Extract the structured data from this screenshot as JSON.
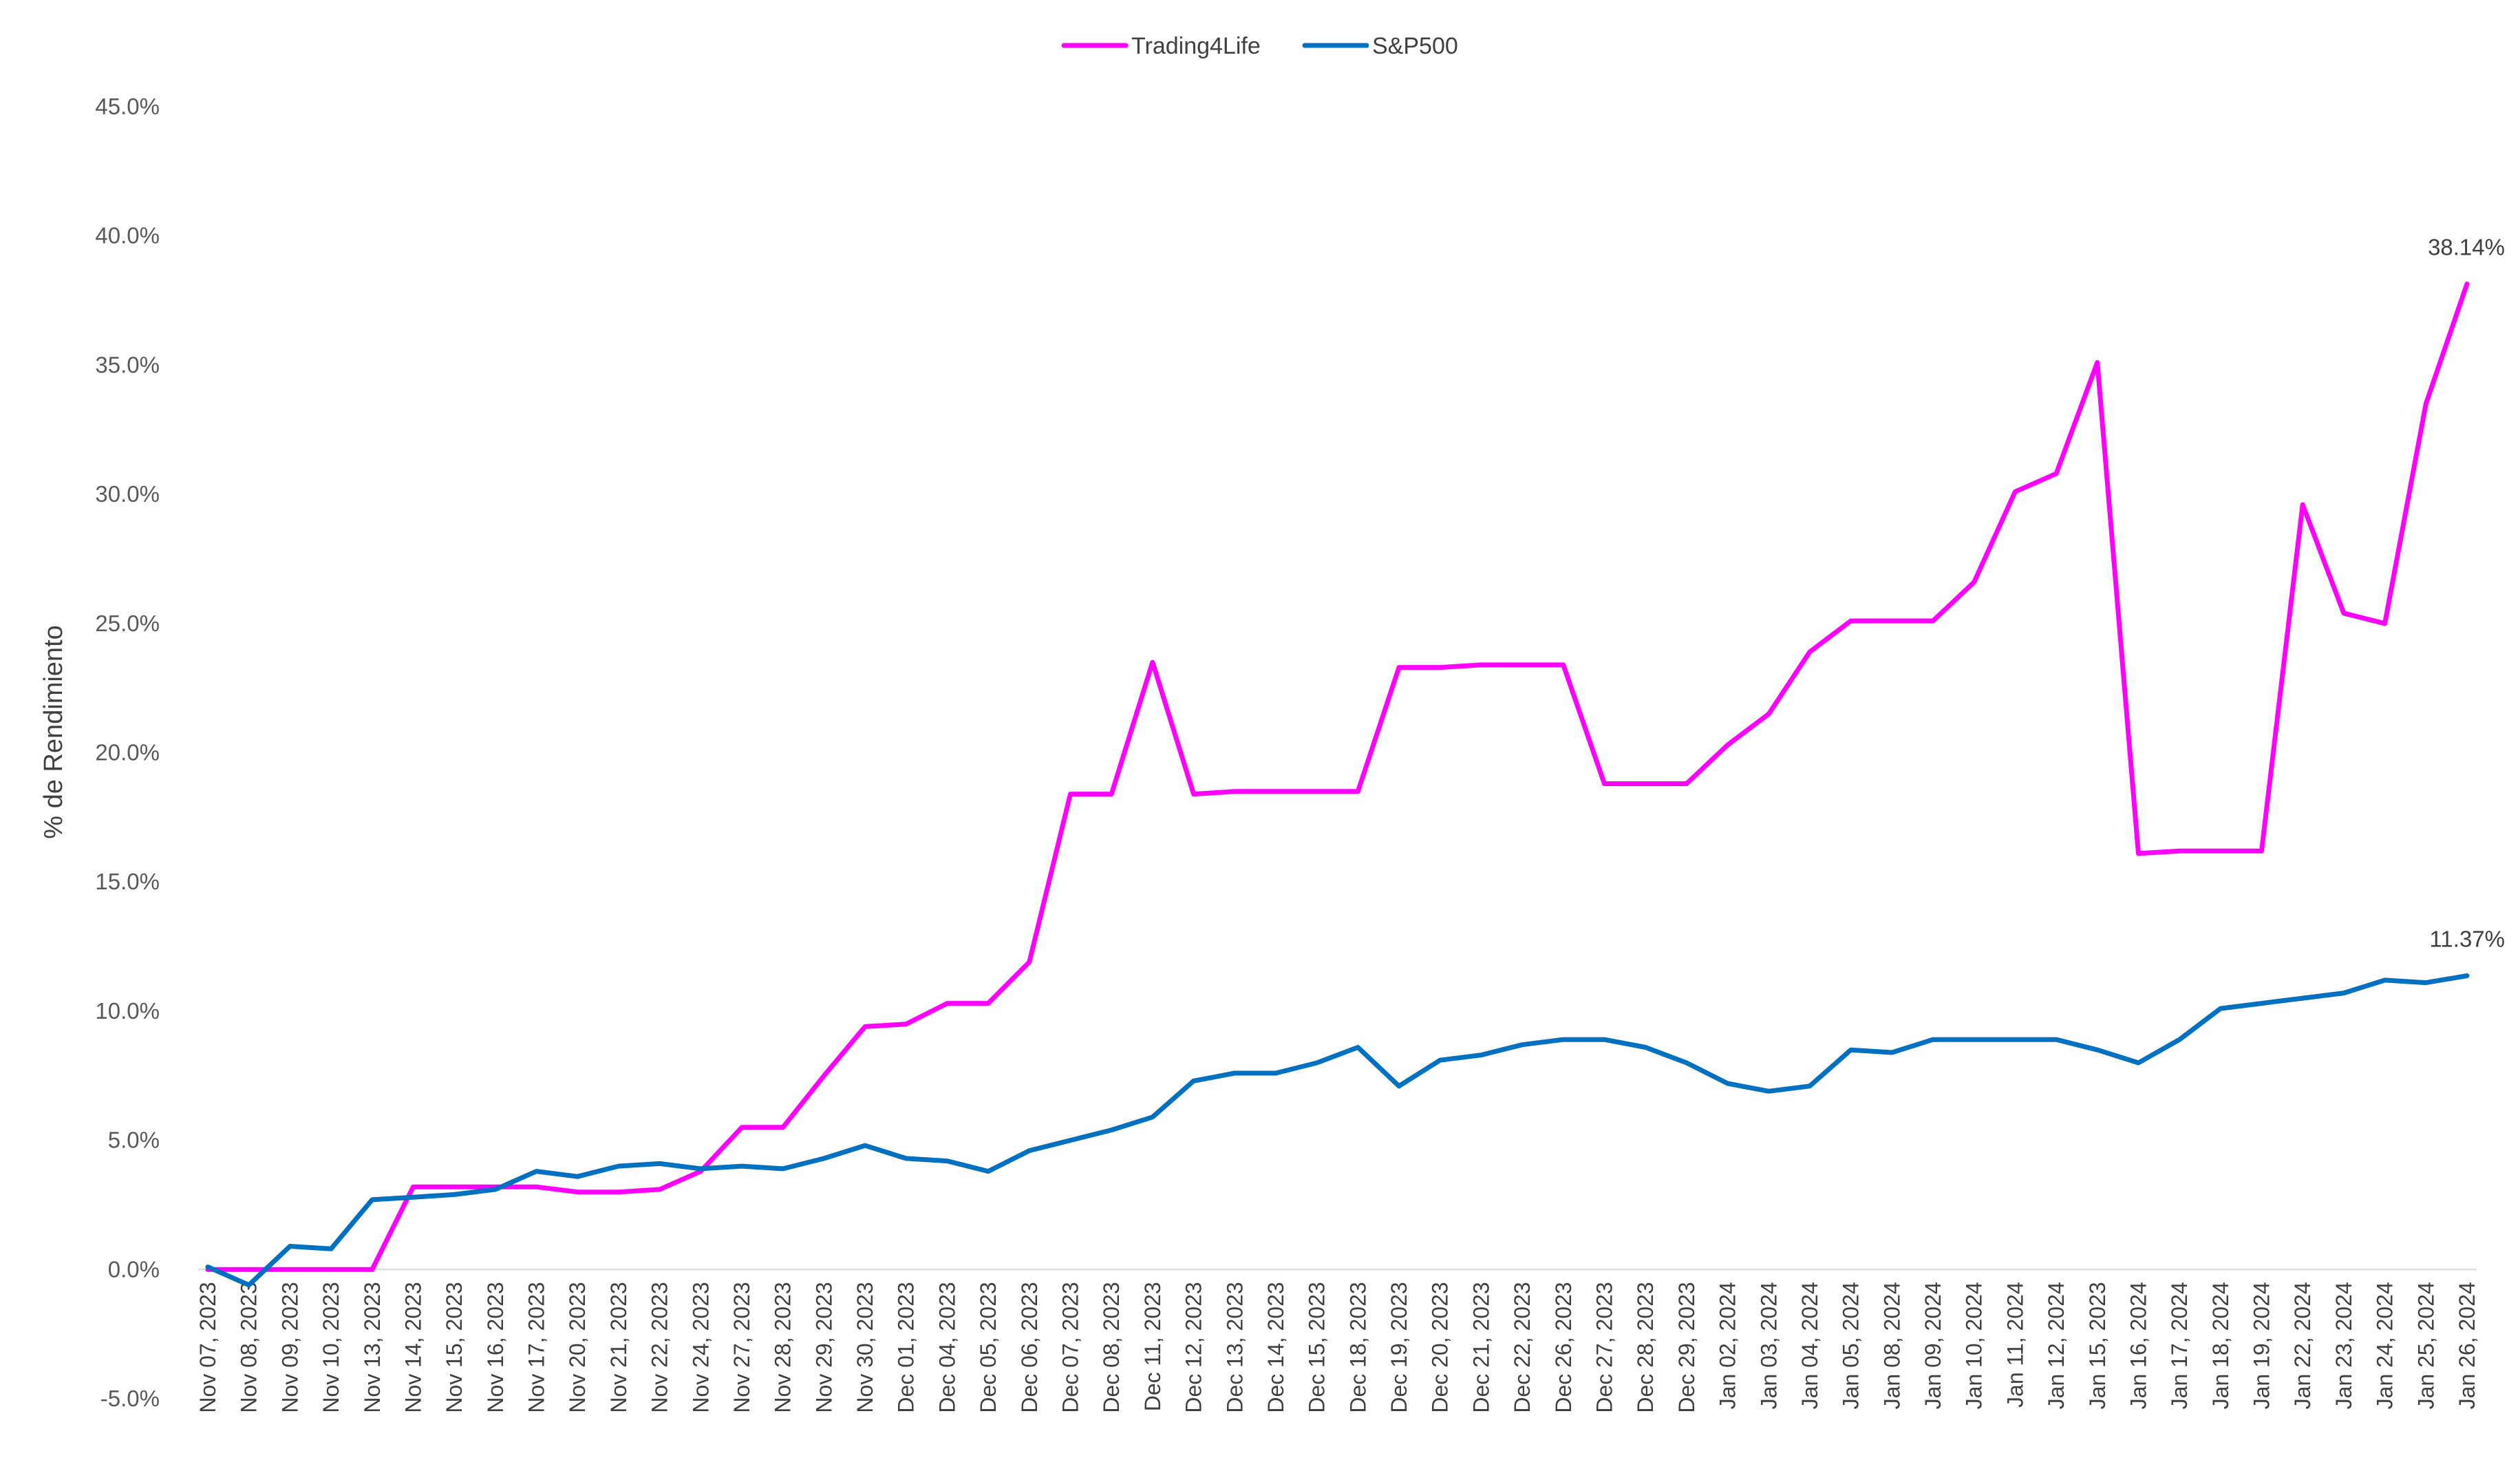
{
  "chart_data": {
    "type": "line",
    "ylabel": "% de Rendimiento",
    "ylim": [
      -5,
      45
    ],
    "yticks": [
      -5,
      0,
      5,
      10,
      15,
      20,
      25,
      30,
      35,
      40,
      45
    ],
    "ytick_labels": [
      "-5.0%",
      "0.0%",
      "5.0%",
      "10.0%",
      "15.0%",
      "20.0%",
      "25.0%",
      "30.0%",
      "35.0%",
      "40.0%",
      "45.0%"
    ],
    "grid": false,
    "legend_position": "top-center",
    "categories": [
      "Nov 07, 2023",
      "Nov 08, 2023",
      "Nov 09, 2023",
      "Nov 10, 2023",
      "Nov 13, 2023",
      "Nov 14, 2023",
      "Nov 15, 2023",
      "Nov 16, 2023",
      "Nov 17, 2023",
      "Nov 20, 2023",
      "Nov 21, 2023",
      "Nov 22, 2023",
      "Nov 24, 2023",
      "Nov 27, 2023",
      "Nov 28, 2023",
      "Nov 29, 2023",
      "Nov 30, 2023",
      "Dec 01, 2023",
      "Dec 04, 2023",
      "Dec 05, 2023",
      "Dec 06, 2023",
      "Dec 07, 2023",
      "Dec 08, 2023",
      "Dec 11, 2023",
      "Dec 12, 2023",
      "Dec 13, 2023",
      "Dec 14, 2023",
      "Dec 15, 2023",
      "Dec 18, 2023",
      "Dec 19, 2023",
      "Dec 20, 2023",
      "Dec 21, 2023",
      "Dec 22, 2023",
      "Dec 26, 2023",
      "Dec 27, 2023",
      "Dec 28, 2023",
      "Dec 29, 2023",
      "Jan 02, 2024",
      "Jan 03, 2024",
      "Jan 04, 2024",
      "Jan 05, 2024",
      "Jan 08, 2024",
      "Jan 09, 2024",
      "Jan 10, 2024",
      "Jan 11, 2024",
      "Jan 12, 2024",
      "Jan 15, 2023",
      "Jan 16, 2024",
      "Jan 17, 2024",
      "Jan 18, 2024",
      "Jan 19, 2024",
      "Jan 22, 2024",
      "Jan 23, 2024",
      "Jan 24, 2024",
      "Jan 25, 2024",
      "Jan 26, 2024"
    ],
    "series": [
      {
        "name": "Trading4Life",
        "color": "#FF00FF",
        "values": [
          0.0,
          0.0,
          0.0,
          0.0,
          0.0,
          3.2,
          3.2,
          3.2,
          3.2,
          3.0,
          3.0,
          3.1,
          3.8,
          5.5,
          5.5,
          7.5,
          9.4,
          9.5,
          10.3,
          10.3,
          11.9,
          18.4,
          18.4,
          23.5,
          18.4,
          18.5,
          18.5,
          18.5,
          18.5,
          23.3,
          23.3,
          23.4,
          23.4,
          23.4,
          18.8,
          18.8,
          18.8,
          20.3,
          21.5,
          23.9,
          25.1,
          25.1,
          25.1,
          26.6,
          30.1,
          30.8,
          35.1,
          16.1,
          16.2,
          16.2,
          16.2,
          29.6,
          25.4,
          25.0,
          33.5,
          38.14
        ],
        "end_label": "38.14%"
      },
      {
        "name": "S&P500",
        "color": "#0070C0",
        "values": [
          0.1,
          -0.6,
          0.9,
          0.8,
          2.7,
          2.8,
          2.9,
          3.1,
          3.8,
          3.6,
          4.0,
          4.1,
          3.9,
          4.0,
          3.9,
          4.3,
          4.8,
          4.3,
          4.2,
          3.8,
          4.6,
          5.0,
          5.4,
          5.9,
          7.3,
          7.6,
          7.6,
          8.0,
          8.6,
          7.1,
          8.1,
          8.3,
          8.7,
          8.9,
          8.9,
          8.6,
          8.0,
          7.2,
          6.9,
          7.1,
          8.5,
          8.4,
          8.9,
          8.9,
          8.9,
          8.9,
          8.5,
          8.0,
          8.9,
          10.1,
          10.3,
          10.5,
          10.7,
          11.2,
          11.1,
          11.37
        ],
        "end_label": "11.37%"
      }
    ]
  }
}
